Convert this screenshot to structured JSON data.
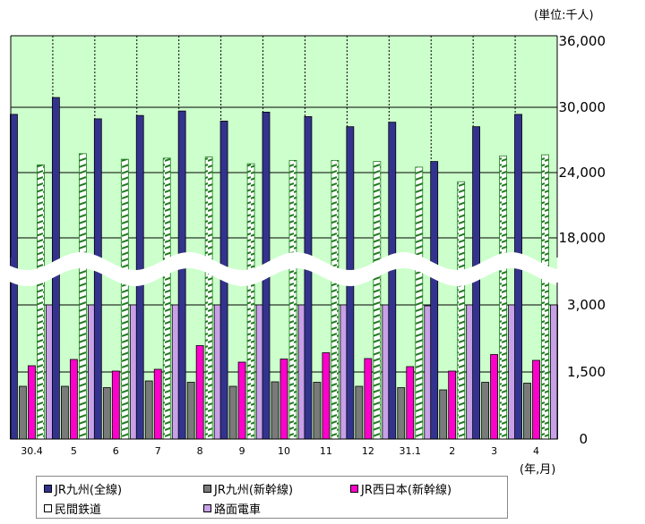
{
  "chart_data": {
    "type": "bar",
    "unit_label": "(単位:千人)",
    "x_unit_label": "(年,月)",
    "categories": [
      "30.4",
      "5",
      "6",
      "7",
      "8",
      "9",
      "10",
      "11",
      "12",
      "31.1",
      "2",
      "3",
      "4"
    ],
    "y_ticks_upper": [
      "36,000",
      "30,000",
      "24,000",
      "18,000"
    ],
    "y_ticks_lower": [
      "3,000",
      "1,500",
      "0"
    ],
    "axis_break": {
      "lower_max": 3000,
      "upper_min": 18000,
      "upper_max": 36000
    },
    "ylim_lower": [
      0,
      3000
    ],
    "ylim_upper": [
      18000,
      36000
    ],
    "grid": true,
    "legend_position": "bottom",
    "series": [
      {
        "name": "JR九州(全線)",
        "color": "#33338f",
        "pattern": "solid",
        "values": [
          29000,
          30500,
          28600,
          28900,
          29300,
          28400,
          29200,
          28800,
          27900,
          28300,
          24800,
          27900,
          29000
        ]
      },
      {
        "name": "JR九州(新幹線)",
        "color": "#7a7a7a",
        "pattern": "solid",
        "values": [
          1180,
          1180,
          1150,
          1300,
          1270,
          1180,
          1280,
          1270,
          1180,
          1150,
          1100,
          1270,
          1250
        ]
      },
      {
        "name": "JR西日本(新幹線)",
        "color": "#ff00cc",
        "pattern": "solid",
        "values": [
          1640,
          1780,
          1520,
          1560,
          2090,
          1720,
          1790,
          1930,
          1800,
          1620,
          1520,
          1890,
          1760
        ]
      },
      {
        "name": "民間鉄道",
        "color": "#ffffff",
        "pattern": "hatched",
        "values": [
          24500,
          25500,
          25000,
          25100,
          25200,
          24600,
          24900,
          24900,
          24800,
          24300,
          23000,
          25300,
          25400
        ]
      },
      {
        "name": "路面電車",
        "color": "#c8a0e8",
        "pattern": "solid",
        "values": [
          3250,
          3450,
          3220,
          3420,
          3510,
          3160,
          3500,
          3330,
          3330,
          2980,
          3030,
          3430,
          3330
        ]
      }
    ]
  }
}
